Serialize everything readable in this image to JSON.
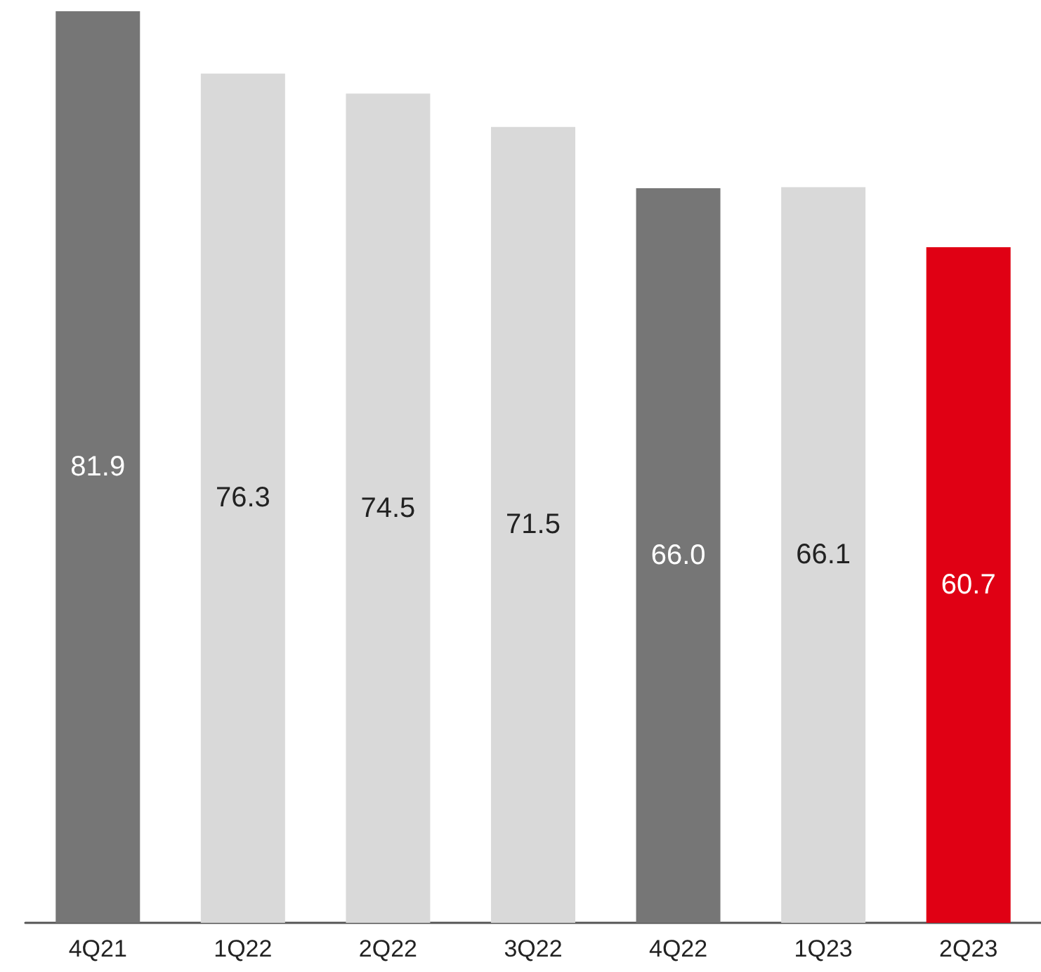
{
  "chart_data": {
    "type": "bar",
    "categories": [
      "4Q21",
      "1Q22",
      "2Q22",
      "3Q22",
      "4Q22",
      "1Q23",
      "2Q23"
    ],
    "values": [
      81.9,
      76.3,
      74.5,
      71.5,
      66.0,
      66.1,
      60.7
    ],
    "value_labels": [
      "81.9",
      "76.3",
      "74.5",
      "71.5",
      "66.0",
      "66.1",
      "60.7"
    ],
    "colors": [
      "#767676",
      "#d9d9d9",
      "#d9d9d9",
      "#d9d9d9",
      "#767676",
      "#d9d9d9",
      "#e00014"
    ]
  }
}
